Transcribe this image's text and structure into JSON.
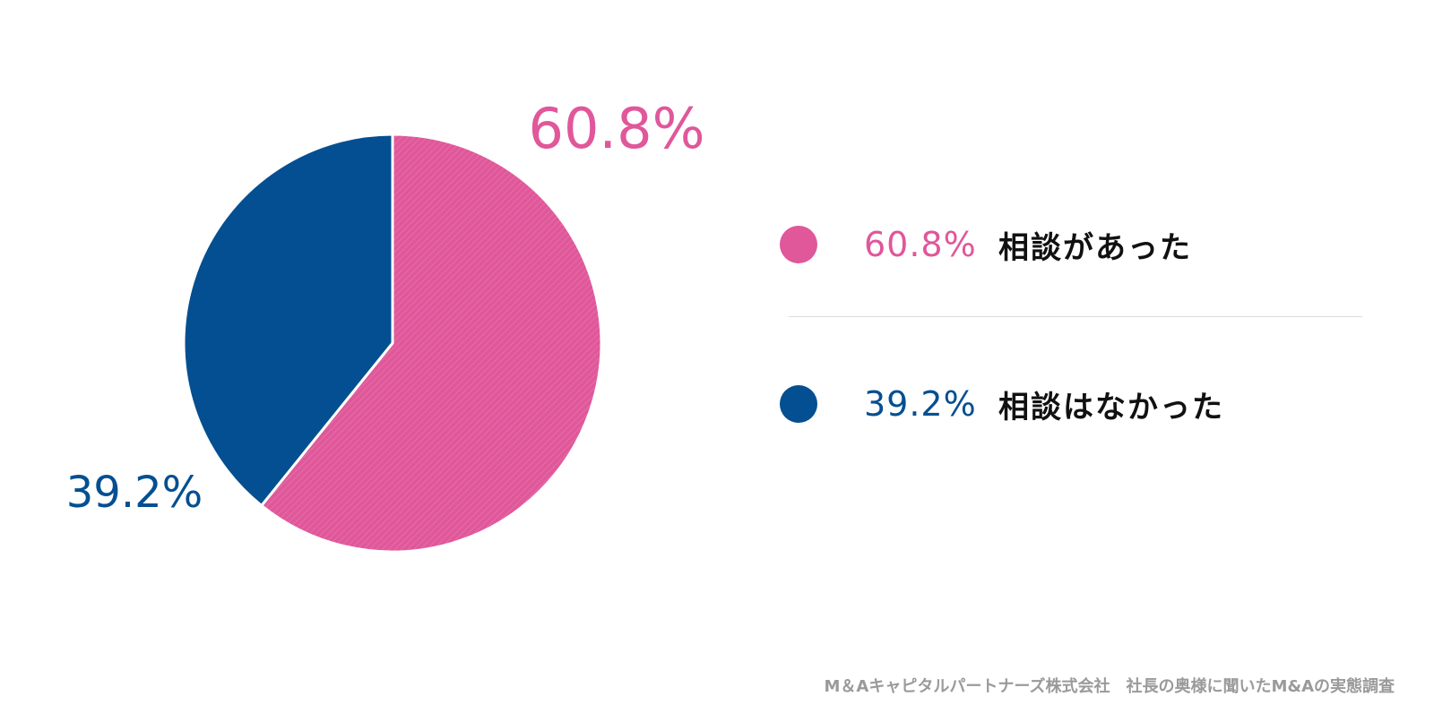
{
  "chart_data": {
    "type": "pie",
    "start_angle_deg": 0,
    "direction": "clockwise",
    "slices": [
      {
        "label": "相談があった",
        "value": 60.8,
        "value_label": "60.8%",
        "color": "#e0579a"
      },
      {
        "label": "相談はなかった",
        "value": 39.2,
        "value_label": "39.2%",
        "color": "#034f91"
      }
    ],
    "legend_position": "right"
  },
  "source": "M＆Aキャピタルパートナーズ株式会社　社長の奥様に聞いたM&Aの実態調査"
}
